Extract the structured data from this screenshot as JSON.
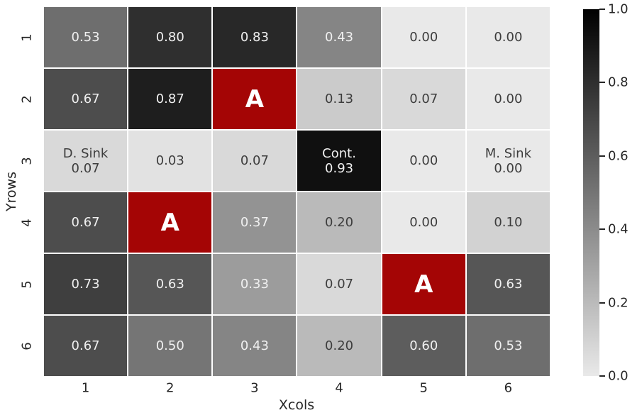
{
  "chart_data": {
    "type": "heatmap",
    "title": "",
    "xlabel": "Xcols",
    "ylabel": "Yrows",
    "x_ticks": [
      "1",
      "2",
      "3",
      "4",
      "5",
      "6"
    ],
    "y_ticks": [
      "1",
      "2",
      "3",
      "4",
      "5",
      "6"
    ],
    "vmin": 0.0,
    "vmax": 1.0,
    "grid": false,
    "legend_position": "colorbar-right",
    "colorbar_ticks": [
      {
        "value": 1.0,
        "label": "1.0"
      },
      {
        "value": 0.8,
        "label": "0.8"
      },
      {
        "value": 0.6,
        "label": "0.6"
      },
      {
        "value": 0.4,
        "label": "0.4"
      },
      {
        "value": 0.2,
        "label": "0.2"
      },
      {
        "value": 0.0,
        "label": "0.0"
      }
    ],
    "cells": [
      [
        {
          "value": 0.53,
          "lines": [
            "0.53"
          ],
          "highlight": false
        },
        {
          "value": 0.8,
          "lines": [
            "0.80"
          ],
          "highlight": false
        },
        {
          "value": 0.83,
          "lines": [
            "0.83"
          ],
          "highlight": false
        },
        {
          "value": 0.43,
          "lines": [
            "0.43"
          ],
          "highlight": false
        },
        {
          "value": 0.0,
          "lines": [
            "0.00"
          ],
          "highlight": false
        },
        {
          "value": 0.0,
          "lines": [
            "0.00"
          ],
          "highlight": false
        }
      ],
      [
        {
          "value": 0.67,
          "lines": [
            "0.67"
          ],
          "highlight": false
        },
        {
          "value": 0.87,
          "lines": [
            "0.87"
          ],
          "highlight": false
        },
        {
          "value": null,
          "lines": [
            "A"
          ],
          "highlight": true
        },
        {
          "value": 0.13,
          "lines": [
            "0.13"
          ],
          "highlight": false
        },
        {
          "value": 0.07,
          "lines": [
            "0.07"
          ],
          "highlight": false
        },
        {
          "value": 0.0,
          "lines": [
            "0.00"
          ],
          "highlight": false
        }
      ],
      [
        {
          "value": 0.07,
          "lines": [
            "D. Sink",
            "0.07"
          ],
          "highlight": false
        },
        {
          "value": 0.03,
          "lines": [
            "0.03"
          ],
          "highlight": false
        },
        {
          "value": 0.07,
          "lines": [
            "0.07"
          ],
          "highlight": false
        },
        {
          "value": 0.93,
          "lines": [
            "Cont.",
            "0.93"
          ],
          "highlight": false
        },
        {
          "value": 0.0,
          "lines": [
            "0.00"
          ],
          "highlight": false
        },
        {
          "value": 0.0,
          "lines": [
            "M. Sink",
            "0.00"
          ],
          "highlight": false
        }
      ],
      [
        {
          "value": 0.67,
          "lines": [
            "0.67"
          ],
          "highlight": false
        },
        {
          "value": null,
          "lines": [
            "A"
          ],
          "highlight": true
        },
        {
          "value": 0.37,
          "lines": [
            "0.37"
          ],
          "highlight": false
        },
        {
          "value": 0.2,
          "lines": [
            "0.20"
          ],
          "highlight": false
        },
        {
          "value": 0.0,
          "lines": [
            "0.00"
          ],
          "highlight": false
        },
        {
          "value": 0.1,
          "lines": [
            "0.10"
          ],
          "highlight": false
        }
      ],
      [
        {
          "value": 0.73,
          "lines": [
            "0.73"
          ],
          "highlight": false
        },
        {
          "value": 0.63,
          "lines": [
            "0.63"
          ],
          "highlight": false
        },
        {
          "value": 0.33,
          "lines": [
            "0.33"
          ],
          "highlight": false
        },
        {
          "value": 0.07,
          "lines": [
            "0.07"
          ],
          "highlight": false
        },
        {
          "value": null,
          "lines": [
            "A"
          ],
          "highlight": true
        },
        {
          "value": 0.63,
          "lines": [
            "0.63"
          ],
          "highlight": false
        }
      ],
      [
        {
          "value": 0.67,
          "lines": [
            "0.67"
          ],
          "highlight": false
        },
        {
          "value": 0.5,
          "lines": [
            "0.50"
          ],
          "highlight": false
        },
        {
          "value": 0.43,
          "lines": [
            "0.43"
          ],
          "highlight": false
        },
        {
          "value": 0.2,
          "lines": [
            "0.20"
          ],
          "highlight": false
        },
        {
          "value": 0.6,
          "lines": [
            "0.60"
          ],
          "highlight": false
        },
        {
          "value": 0.53,
          "lines": [
            "0.53"
          ],
          "highlight": false
        }
      ]
    ],
    "colors": {
      "highlight": "#a40505",
      "cmap_low": "#e9e9e9",
      "cmap_high": "#000000",
      "text_light": "#f0f0f0",
      "text_dark": "#3d3d3d",
      "axis_text": "#262626",
      "light_text_threshold": 0.3
    }
  }
}
